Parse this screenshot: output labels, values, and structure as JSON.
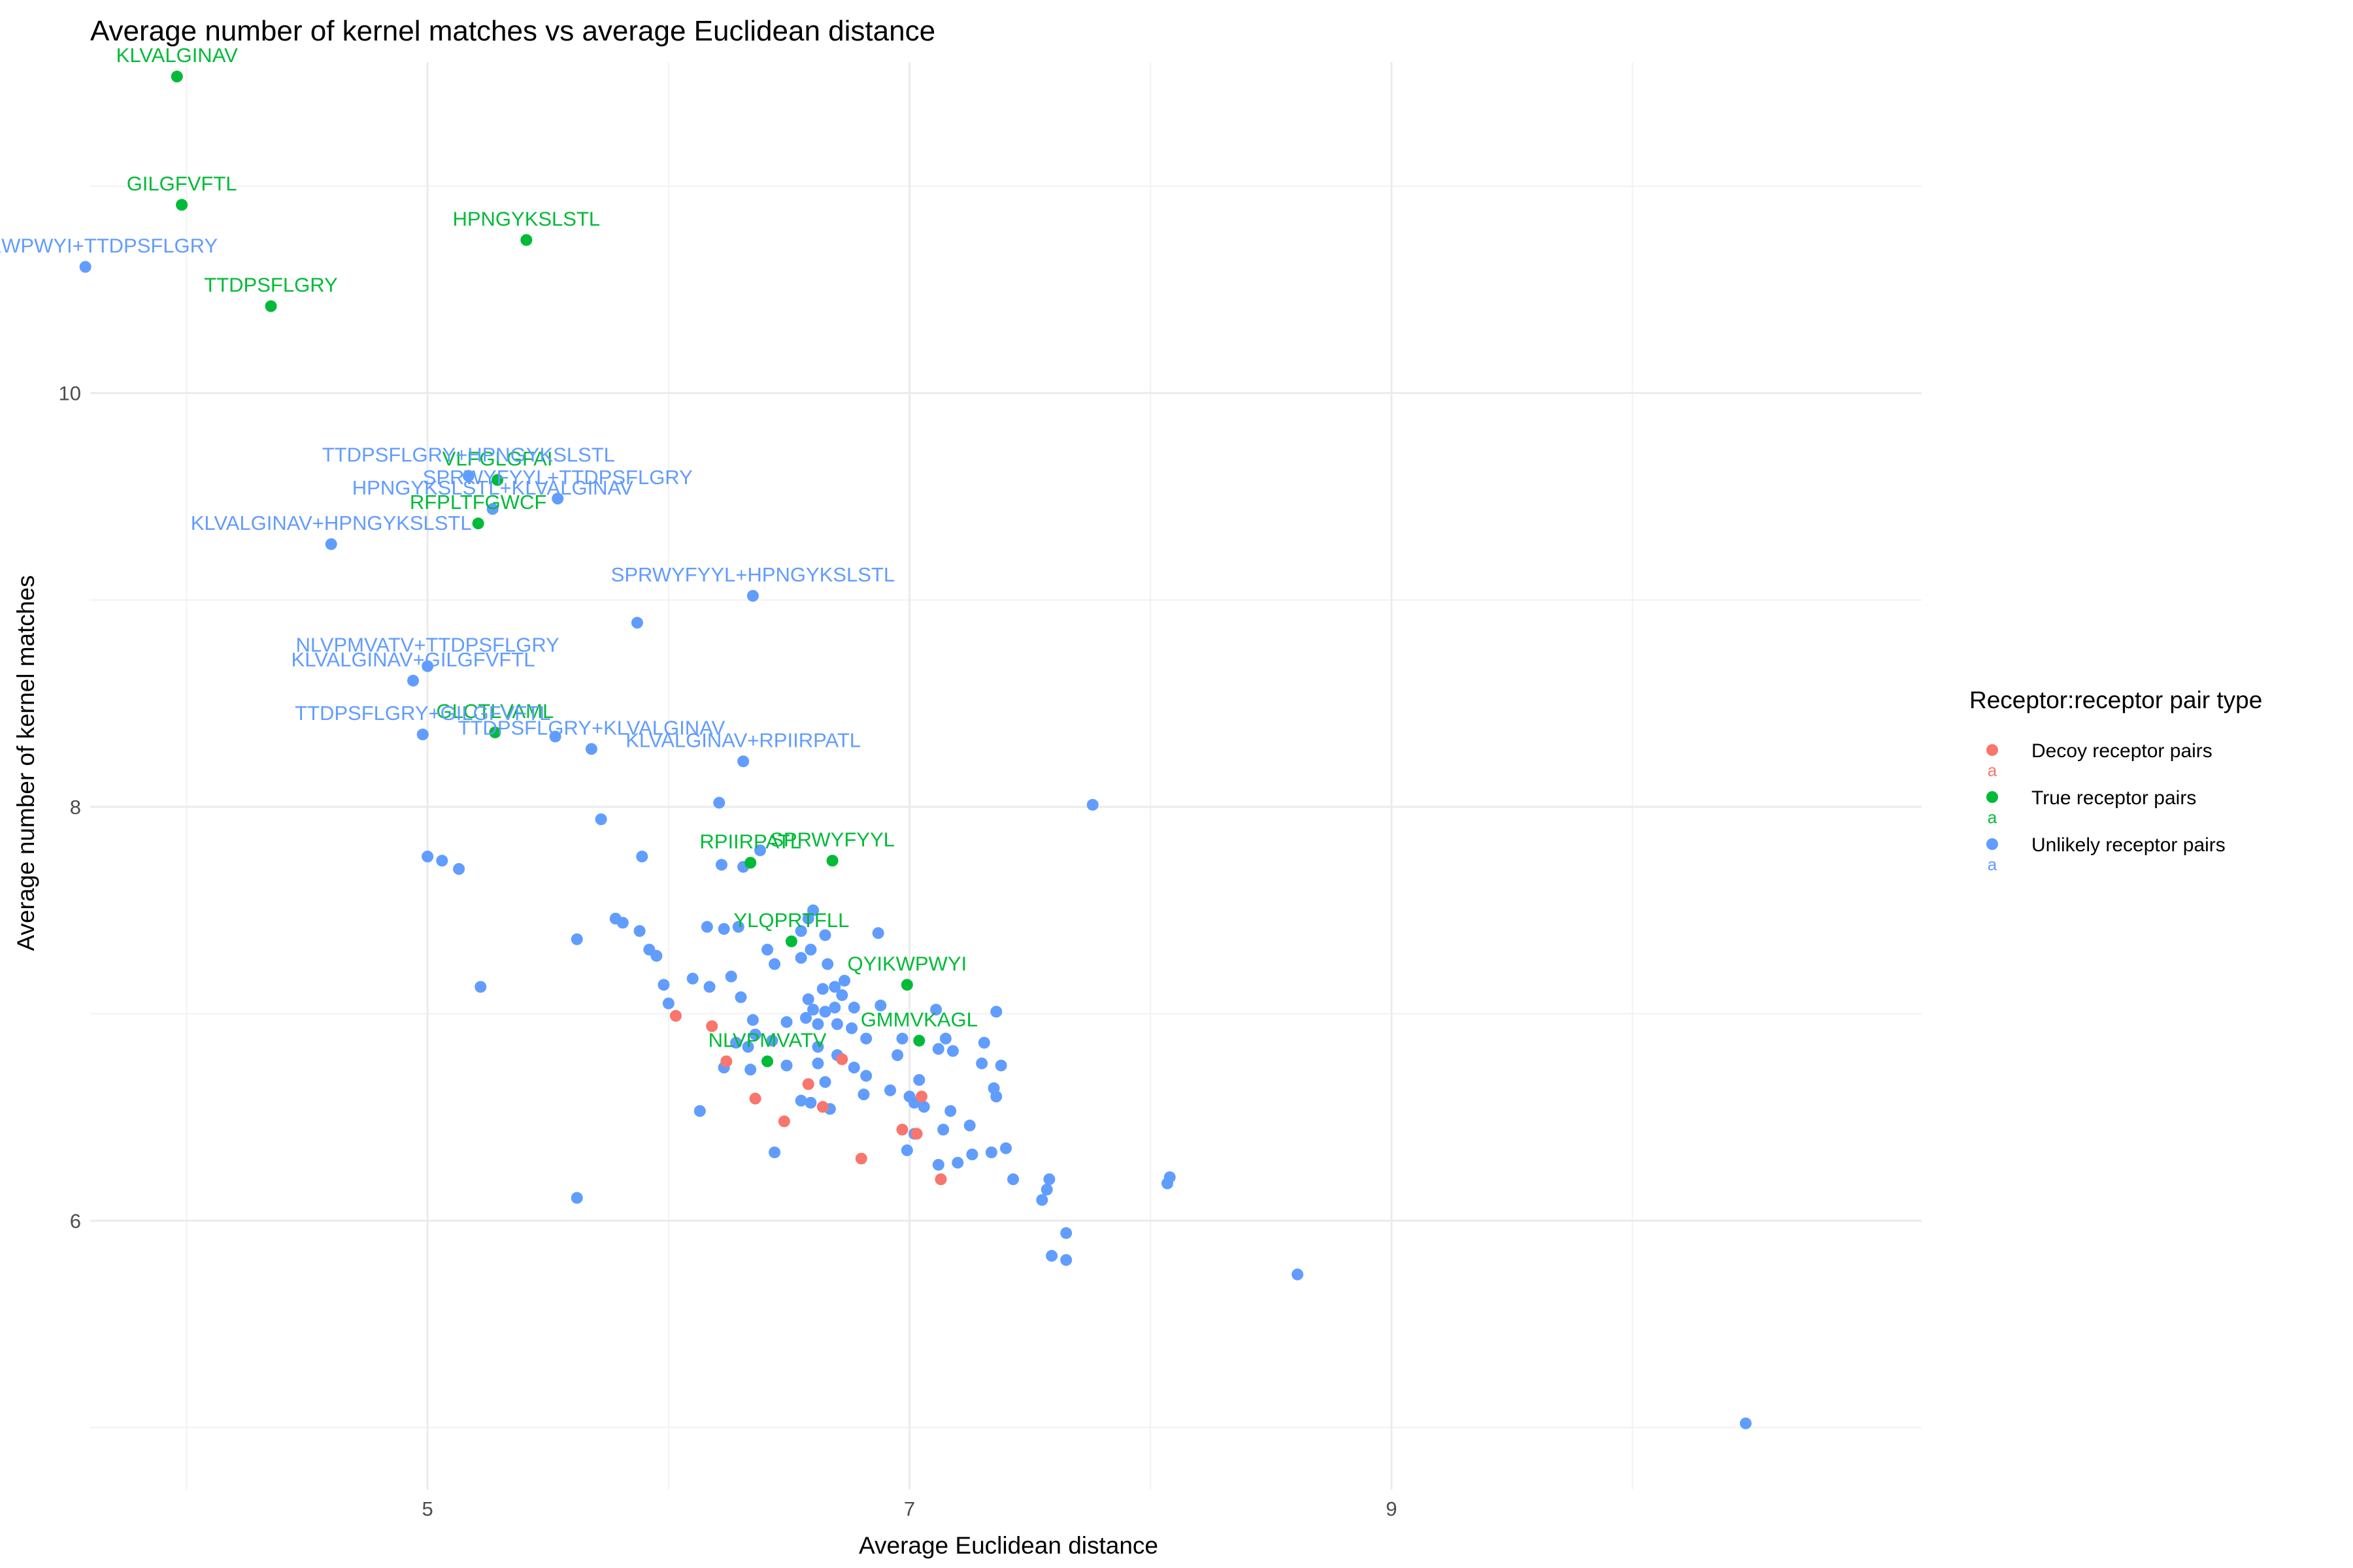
{
  "chart_data": {
    "type": "scatter",
    "title": "Average number of kernel matches vs average Euclidean distance",
    "xlabel": "Average Euclidean distance",
    "ylabel": "Average number of kernel matches",
    "xlim": [
      3.6,
      11.2
    ],
    "ylim": [
      4.7,
      11.6
    ],
    "x_ticks": [
      5,
      7,
      9
    ],
    "y_ticks": [
      6,
      8,
      10
    ],
    "x_tick_labels": [
      "5",
      "7",
      "9"
    ],
    "y_tick_labels": [
      "6",
      "8",
      "10"
    ],
    "grid": true,
    "legend": {
      "title": "Receptor:receptor pair type",
      "position": "right",
      "entries": [
        {
          "label": "Decoy receptor pairs",
          "color": "#F8766D",
          "key_text": "a"
        },
        {
          "label": "True receptor pairs",
          "color": "#00BA38",
          "key_text": "a"
        },
        {
          "label": "Unlikely receptor pairs",
          "color": "#619CFF",
          "key_text": "a"
        }
      ]
    },
    "series": [
      {
        "name": "Decoy receptor pairs",
        "color": "#F8766D",
        "points": [
          [
            6.03,
            6.99
          ],
          [
            6.18,
            6.94
          ],
          [
            6.24,
            6.77
          ],
          [
            6.36,
            6.59
          ],
          [
            6.48,
            6.48
          ],
          [
            6.58,
            6.66
          ],
          [
            6.64,
            6.55
          ],
          [
            6.72,
            6.78
          ],
          [
            6.8,
            6.3
          ],
          [
            6.97,
            6.44
          ],
          [
            7.03,
            6.42
          ],
          [
            7.05,
            6.6
          ],
          [
            7.13,
            6.2
          ]
        ]
      },
      {
        "name": "True receptor pairs",
        "color": "#00BA38",
        "points": [
          [
            3.96,
            11.53
          ],
          [
            3.98,
            10.91
          ],
          [
            4.35,
            10.42
          ],
          [
            5.41,
            10.74
          ],
          [
            5.29,
            9.58
          ],
          [
            5.21,
            9.37
          ],
          [
            5.28,
            8.36
          ],
          [
            6.34,
            7.73
          ],
          [
            6.68,
            7.74
          ],
          [
            6.51,
            7.35
          ],
          [
            6.99,
            7.14
          ],
          [
            7.04,
            6.87
          ],
          [
            6.41,
            6.77
          ]
        ],
        "labels": [
          {
            "text": "KLVALGINAV",
            "x": 3.96,
            "y": 11.53
          },
          {
            "text": "GILGFVFTL",
            "x": 3.98,
            "y": 10.91
          },
          {
            "text": "TTDPSFLGRY",
            "x": 4.35,
            "y": 10.42
          },
          {
            "text": "HPNGYKSLSTL",
            "x": 5.41,
            "y": 10.74
          },
          {
            "text": "VLFGLGFAI",
            "x": 5.29,
            "y": 9.58
          },
          {
            "text": "RFPLTFGWCF",
            "x": 5.21,
            "y": 9.37
          },
          {
            "text": "GLCTLVAML",
            "x": 5.28,
            "y": 8.36
          },
          {
            "text": "RPIIRPATL",
            "x": 6.34,
            "y": 7.73
          },
          {
            "text": "SPRWYFYYL",
            "x": 6.68,
            "y": 7.74
          },
          {
            "text": "YLQPRTFLL",
            "x": 6.51,
            "y": 7.35
          },
          {
            "text": "QYIKWPWYI",
            "x": 6.99,
            "y": 7.14
          },
          {
            "text": "GMMVKAGL",
            "x": 7.04,
            "y": 6.87
          },
          {
            "text": "NLVPMVATV",
            "x": 6.41,
            "y": 6.77
          }
        ]
      },
      {
        "name": "Unlikely receptor pairs",
        "color": "#619CFF",
        "points": [
          [
            3.58,
            10.61
          ],
          [
            4.6,
            9.27
          ],
          [
            5.17,
            9.6
          ],
          [
            5.27,
            9.44
          ],
          [
            5.54,
            9.49
          ],
          [
            6.35,
            9.02
          ],
          [
            5.87,
            8.89
          ],
          [
            5.0,
            8.68
          ],
          [
            4.94,
            8.61
          ],
          [
            4.98,
            8.35
          ],
          [
            5.53,
            8.34
          ],
          [
            5.68,
            8.28
          ],
          [
            6.31,
            8.22
          ],
          [
            6.21,
            8.02
          ],
          [
            7.76,
            8.01
          ],
          [
            5.72,
            7.94
          ],
          [
            5.0,
            7.76
          ],
          [
            5.06,
            7.74
          ],
          [
            5.13,
            7.7
          ],
          [
            6.38,
            7.79
          ],
          [
            5.89,
            7.76
          ],
          [
            6.22,
            7.72
          ],
          [
            6.31,
            7.71
          ],
          [
            6.6,
            7.5
          ],
          [
            6.58,
            7.46
          ],
          [
            5.78,
            7.46
          ],
          [
            5.81,
            7.44
          ],
          [
            5.88,
            7.4
          ],
          [
            6.16,
            7.42
          ],
          [
            6.23,
            7.41
          ],
          [
            6.29,
            7.42
          ],
          [
            6.55,
            7.4
          ],
          [
            6.87,
            7.39
          ],
          [
            5.62,
            7.36
          ],
          [
            5.92,
            7.31
          ],
          [
            5.95,
            7.28
          ],
          [
            6.41,
            7.31
          ],
          [
            6.44,
            7.24
          ],
          [
            6.55,
            7.27
          ],
          [
            6.59,
            7.31
          ],
          [
            6.65,
            7.38
          ],
          [
            6.66,
            7.24
          ],
          [
            6.26,
            7.18
          ],
          [
            5.98,
            7.14
          ],
          [
            6.1,
            7.17
          ],
          [
            6.17,
            7.13
          ],
          [
            5.22,
            7.13
          ],
          [
            6.3,
            7.08
          ],
          [
            6.58,
            7.07
          ],
          [
            6.64,
            7.12
          ],
          [
            6.69,
            7.13
          ],
          [
            6.73,
            7.16
          ],
          [
            6.72,
            7.09
          ],
          [
            6.0,
            7.05
          ],
          [
            6.6,
            7.02
          ],
          [
            6.65,
            7.01
          ],
          [
            6.69,
            7.03
          ],
          [
            6.77,
            7.03
          ],
          [
            6.88,
            7.04
          ],
          [
            7.11,
            7.02
          ],
          [
            7.36,
            7.01
          ],
          [
            6.35,
            6.97
          ],
          [
            6.49,
            6.96
          ],
          [
            6.57,
            6.98
          ],
          [
            6.62,
            6.95
          ],
          [
            6.7,
            6.95
          ],
          [
            6.76,
            6.93
          ],
          [
            6.36,
            6.9
          ],
          [
            6.43,
            6.87
          ],
          [
            6.28,
            6.86
          ],
          [
            6.33,
            6.84
          ],
          [
            6.82,
            6.88
          ],
          [
            6.97,
            6.88
          ],
          [
            7.15,
            6.88
          ],
          [
            7.31,
            6.86
          ],
          [
            6.62,
            6.84
          ],
          [
            7.12,
            6.83
          ],
          [
            7.18,
            6.82
          ],
          [
            6.7,
            6.8
          ],
          [
            6.95,
            6.8
          ],
          [
            6.23,
            6.74
          ],
          [
            6.49,
            6.75
          ],
          [
            6.62,
            6.76
          ],
          [
            6.77,
            6.74
          ],
          [
            7.3,
            6.76
          ],
          [
            7.38,
            6.75
          ],
          [
            6.34,
            6.73
          ],
          [
            6.82,
            6.7
          ],
          [
            7.04,
            6.68
          ],
          [
            6.65,
            6.67
          ],
          [
            6.92,
            6.63
          ],
          [
            7.0,
            6.6
          ],
          [
            7.35,
            6.64
          ],
          [
            7.36,
            6.6
          ],
          [
            6.81,
            6.61
          ],
          [
            6.55,
            6.58
          ],
          [
            6.59,
            6.57
          ],
          [
            6.67,
            6.54
          ],
          [
            7.02,
            6.57
          ],
          [
            7.06,
            6.55
          ],
          [
            7.17,
            6.53
          ],
          [
            6.13,
            6.53
          ],
          [
            7.25,
            6.46
          ],
          [
            7.14,
            6.44
          ],
          [
            7.02,
            6.42
          ],
          [
            7.4,
            6.35
          ],
          [
            7.34,
            6.33
          ],
          [
            7.26,
            6.32
          ],
          [
            7.2,
            6.28
          ],
          [
            7.12,
            6.27
          ],
          [
            6.99,
            6.34
          ],
          [
            6.44,
            6.33
          ],
          [
            7.43,
            6.2
          ],
          [
            7.58,
            6.2
          ],
          [
            7.57,
            6.15
          ],
          [
            7.55,
            6.1
          ],
          [
            5.62,
            6.11
          ],
          [
            8.08,
            6.21
          ],
          [
            8.07,
            6.18
          ],
          [
            7.65,
            5.94
          ],
          [
            7.59,
            5.83
          ],
          [
            7.65,
            5.81
          ],
          [
            8.61,
            5.74
          ],
          [
            10.47,
            5.02
          ]
        ],
        "labels": [
          {
            "text": "QYIKWPWYI+TTDPSFLGRY",
            "x": 3.58,
            "y": 10.61
          },
          {
            "text": "TTDPSFLGRY+HPNGYKSLSTL",
            "x": 5.17,
            "y": 9.6
          },
          {
            "text": "HPNGYKSLSTL+KLVALGINAV",
            "x": 5.27,
            "y": 9.44
          },
          {
            "text": "KLVALGINAV+HPNGYKSLSTL",
            "x": 4.6,
            "y": 9.27
          },
          {
            "text": "SPRWYFYYL+TTDPSFLGRY",
            "x": 5.54,
            "y": 9.49
          },
          {
            "text": "SPRWYFYYL+HPNGYKSLSTL",
            "x": 6.35,
            "y": 9.02
          },
          {
            "text": "NLVPMVATV+TTDPSFLGRY",
            "x": 5.0,
            "y": 8.68
          },
          {
            "text": "KLVALGINAV+GILGFVFTL",
            "x": 4.94,
            "y": 8.61
          },
          {
            "text": "TTDPSFLGRY+GILGFVFTL",
            "x": 4.98,
            "y": 8.35
          },
          {
            "text": "TTDPSFLGRY+KLVALGINAV",
            "x": 5.68,
            "y": 8.28
          },
          {
            "text": "KLVALGINAV+RPIIRPATL",
            "x": 6.31,
            "y": 8.22
          }
        ]
      }
    ]
  }
}
